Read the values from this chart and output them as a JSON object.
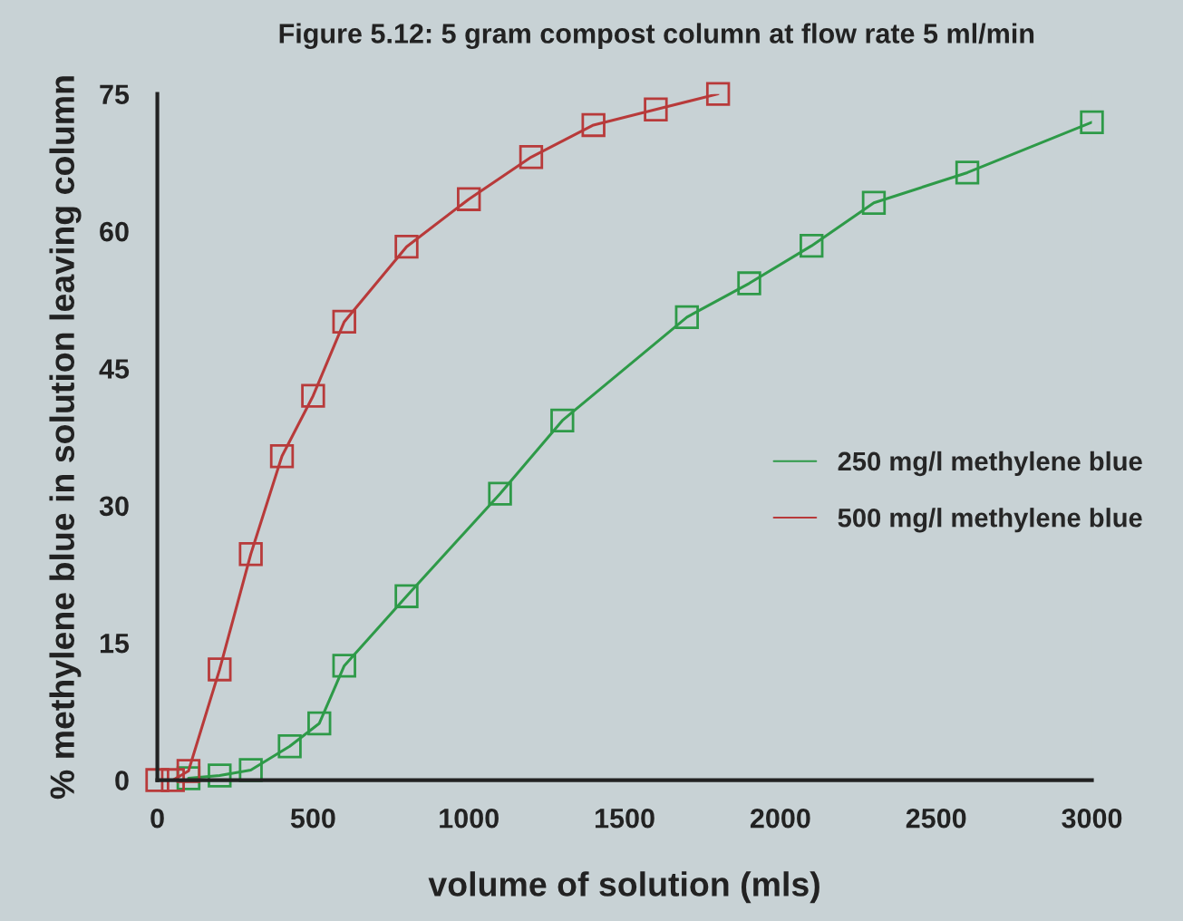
{
  "chart_data": {
    "type": "line",
    "title": "Figure 5.12: 5 gram compost column at flow rate 5 ml/min",
    "xlabel": "volume of solution (mls)",
    "ylabel": "% methylene blue in solution leaving column",
    "xlim": [
      0,
      3000
    ],
    "xticks": [
      0,
      500,
      1000,
      1500,
      2000,
      2500,
      3000
    ],
    "ylim": [
      0,
      75
    ],
    "yticks": [
      0,
      15,
      30,
      45,
      60,
      75
    ],
    "grid": false,
    "legend": "right",
    "marker": "square",
    "line_style": "solid",
    "series": [
      {
        "name": "250 mg/l methylene blue",
        "color": "#2e9a48",
        "x": [
          100,
          200,
          300,
          425,
          520,
          600,
          800,
          1100,
          1300,
          1700,
          1900,
          2100,
          2300,
          2600,
          3000
        ],
        "values": [
          0.2,
          0.5,
          1.1,
          3.7,
          6.2,
          12.5,
          20.1,
          31.3,
          39.3,
          50.6,
          54.3,
          58.4,
          63.1,
          66.4,
          71.9
        ]
      },
      {
        "name": "500 mg/l methylene blue",
        "color": "#b83a3a",
        "x": [
          0,
          50,
          100,
          200,
          300,
          400,
          500,
          600,
          800,
          1000,
          1200,
          1400,
          1600,
          1800
        ],
        "values": [
          0,
          0,
          1.0,
          12.1,
          24.7,
          35.4,
          42.0,
          50.1,
          58.3,
          63.5,
          68.1,
          71.6,
          73.3,
          75.0
        ]
      }
    ]
  }
}
